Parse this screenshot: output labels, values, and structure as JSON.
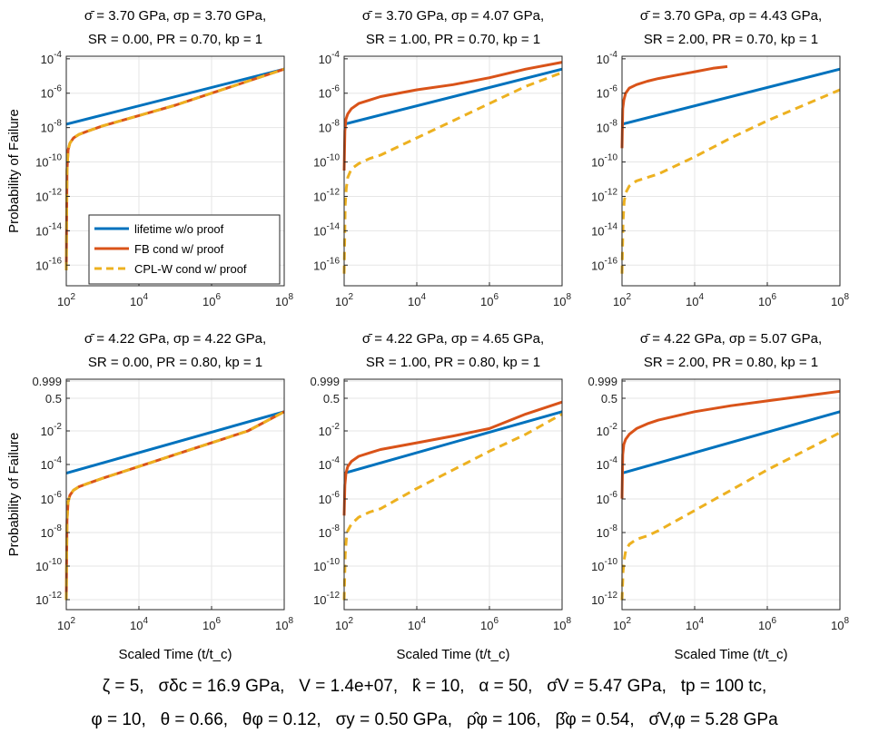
{
  "chart_data": {
    "type": "line",
    "colors": {
      "lifetime": "#0072BD",
      "fb": "#D95319",
      "cpl": "#EDB120",
      "grid": "#e6e6e6",
      "axis": "#262626"
    },
    "legend": {
      "placement": "bottom-left of first panel",
      "entries": [
        {
          "key": "lifetime",
          "label": "lifetime w/o proof"
        },
        {
          "key": "fb",
          "label": "FB cond w/ proof"
        },
        {
          "key": "cpl",
          "label": "CPL-W cond w/ proof"
        }
      ]
    },
    "xlabel": "Scaled Time (t/t_c)",
    "ylabel": "Probability of Failure",
    "xlim": [
      100,
      100000000
    ],
    "x_ticks": [
      "10^2",
      "10^4",
      "10^6",
      "10^8"
    ],
    "y_ticks_top_row": [
      "10^-4",
      "10^-6",
      "10^-8",
      "10^-10",
      "10^-12",
      "10^-14",
      "10^-16"
    ],
    "y_ticks_bottom_row": [
      "0.999",
      "0.5",
      "10^-2",
      "10^-4",
      "10^-6",
      "10^-8",
      "10^-10",
      "10^-12"
    ],
    "panels": [
      {
        "title1": "σ̄ = 3.70 GPa, σp = 3.70 GPa,",
        "title2": "SR = 0.00, PR = 0.70, kp = 1",
        "series": [
          {
            "name": "lifetime w/o proof",
            "x_log10": [
              2,
              8
            ],
            "y_log10": [
              -7.8,
              -4.6
            ]
          },
          {
            "name": "FB cond w/ proof",
            "x_log10": [
              2.0,
              2.02,
              2.05,
              2.1,
              2.2,
              2.35,
              2.6,
              3,
              4,
              5,
              6,
              7,
              8
            ],
            "y_log10": [
              -16.3,
              -10.5,
              -9.3,
              -8.9,
              -8.6,
              -8.4,
              -8.2,
              -7.9,
              -7.3,
              -6.7,
              -6.0,
              -5.3,
              -4.6
            ]
          },
          {
            "name": "CPL-W cond w/ proof",
            "x_log10": [
              2.0,
              2.02,
              2.05,
              2.1,
              2.2,
              2.35,
              2.6,
              3,
              4,
              5,
              6,
              7,
              8
            ],
            "y_log10": [
              -16.3,
              -10.5,
              -9.3,
              -8.9,
              -8.6,
              -8.4,
              -8.2,
              -7.9,
              -7.3,
              -6.7,
              -6.0,
              -5.3,
              -4.6
            ]
          }
        ]
      },
      {
        "title1": "σ̄ = 3.70 GPa, σp = 4.07 GPa,",
        "title2": "SR = 1.00, PR = 0.70, kp = 1",
        "series": [
          {
            "name": "lifetime w/o proof",
            "x_log10": [
              2,
              8
            ],
            "y_log10": [
              -7.8,
              -4.6
            ]
          },
          {
            "name": "FB cond w/ proof",
            "x_log10": [
              2.0,
              2.02,
              2.05,
              2.1,
              2.2,
              2.4,
              2.7,
              3,
              4,
              5,
              6,
              7,
              8
            ],
            "y_log10": [
              -10.5,
              -8.2,
              -7.5,
              -7.2,
              -6.9,
              -6.6,
              -6.4,
              -6.2,
              -5.8,
              -5.5,
              -5.1,
              -4.6,
              -4.2
            ]
          },
          {
            "name": "CPL-W cond w/ proof",
            "x_log10": [
              2.0,
              2.03,
              2.06,
              2.1,
              2.2,
              2.4,
              2.7,
              3,
              4,
              5,
              6,
              7,
              8
            ],
            "y_log10": [
              -16.5,
              -12.5,
              -11.5,
              -10.9,
              -10.4,
              -10.1,
              -9.8,
              -9.6,
              -8.6,
              -7.6,
              -6.6,
              -5.6,
              -4.8
            ]
          }
        ]
      },
      {
        "title1": "σ̄ = 3.70 GPa, σp = 4.43 GPa,",
        "title2": "SR = 2.00, PR = 0.70, kp = 1",
        "series": [
          {
            "name": "lifetime w/o proof",
            "x_log10": [
              2,
              8
            ],
            "y_log10": [
              -7.8,
              -4.6
            ]
          },
          {
            "name": "FB cond w/ proof",
            "x_log10": [
              2.0,
              2.02,
              2.05,
              2.1,
              2.2,
              2.4,
              2.7,
              3,
              3.5,
              4,
              4.5,
              4.9
            ],
            "y_log10": [
              -9.2,
              -6.9,
              -6.4,
              -6.0,
              -5.7,
              -5.5,
              -5.3,
              -5.15,
              -4.95,
              -4.75,
              -4.55,
              -4.45
            ]
          },
          {
            "name": "CPL-W cond w/ proof",
            "x_log10": [
              2.0,
              2.03,
              2.06,
              2.1,
              2.2,
              2.4,
              2.7,
              3,
              4,
              5,
              6,
              7,
              8
            ],
            "y_log10": [
              -16.5,
              -13.4,
              -12.3,
              -11.8,
              -11.4,
              -11.1,
              -10.9,
              -10.7,
              -9.7,
              -8.6,
              -7.6,
              -6.7,
              -5.8
            ]
          }
        ]
      },
      {
        "title1": "σ̄ = 4.22 GPa, σp = 4.22 GPa,",
        "title2": "SR = 0.00, PR = 0.80, kp = 1",
        "series": [
          {
            "name": "lifetime w/o proof",
            "x_log10": [
              2,
              8
            ],
            "y_log10": [
              -4.5,
              -1.2
            ]
          },
          {
            "name": "FB cond w/ proof",
            "x_log10": [
              2.0,
              2.02,
              2.05,
              2.1,
              2.2,
              2.35,
              2.6,
              3,
              4,
              5,
              6,
              7,
              8
            ],
            "y_log10": [
              -12.0,
              -7.3,
              -6.2,
              -5.8,
              -5.5,
              -5.3,
              -5.1,
              -4.8,
              -4.1,
              -3.4,
              -2.7,
              -2.0,
              -1.2
            ]
          },
          {
            "name": "CPL-W cond w/ proof",
            "x_log10": [
              2.0,
              2.02,
              2.05,
              2.1,
              2.2,
              2.35,
              2.6,
              3,
              4,
              5,
              6,
              7,
              8
            ],
            "y_log10": [
              -12.0,
              -7.3,
              -6.2,
              -5.8,
              -5.5,
              -5.3,
              -5.1,
              -4.8,
              -4.1,
              -3.4,
              -2.7,
              -2.0,
              -1.2
            ]
          }
        ]
      },
      {
        "title1": "σ̄ = 4.22 GPa, σp = 4.65 GPa,",
        "title2": "SR = 1.00, PR = 0.80, kp = 1",
        "series": [
          {
            "name": "lifetime w/o proof",
            "x_log10": [
              2,
              8
            ],
            "y_log10": [
              -4.5,
              -1.2
            ]
          },
          {
            "name": "FB cond w/ proof",
            "x_log10": [
              2.0,
              2.02,
              2.05,
              2.1,
              2.2,
              2.4,
              2.7,
              3,
              4,
              5,
              6,
              7,
              8
            ],
            "y_log10": [
              -7.0,
              -5.2,
              -4.5,
              -4.1,
              -3.8,
              -3.5,
              -3.3,
              -3.1,
              -2.7,
              -2.3,
              -1.9,
              -1.3,
              -0.8
            ]
          },
          {
            "name": "CPL-W cond w/ proof",
            "x_log10": [
              2.0,
              2.03,
              2.06,
              2.1,
              2.2,
              2.4,
              2.7,
              3,
              4,
              5,
              6,
              7,
              8
            ],
            "y_log10": [
              -12.0,
              -9.3,
              -8.4,
              -7.9,
              -7.5,
              -7.1,
              -6.8,
              -6.6,
              -5.4,
              -4.3,
              -3.2,
              -2.2,
              -1.3
            ]
          }
        ]
      },
      {
        "title1": "σ̄ = 4.22 GPa, σp = 5.07 GPa,",
        "title2": "SR = 2.00, PR = 0.80, kp = 1",
        "series": [
          {
            "name": "lifetime w/o proof",
            "x_log10": [
              2,
              8
            ],
            "y_log10": [
              -4.5,
              -1.2
            ]
          },
          {
            "name": "FB cond w/ proof",
            "x_log10": [
              2.0,
              2.02,
              2.05,
              2.1,
              2.2,
              2.4,
              2.7,
              3,
              4,
              5,
              6,
              7,
              8
            ],
            "y_log10": [
              -6.0,
              -3.4,
              -2.8,
              -2.5,
              -2.2,
              -1.9,
              -1.7,
              -1.55,
              -1.2,
              -0.95,
              -0.75,
              -0.55,
              -0.35
            ]
          },
          {
            "name": "CPL-W cond w/ proof",
            "x_log10": [
              2.0,
              2.03,
              2.06,
              2.1,
              2.2,
              2.4,
              2.7,
              3,
              4,
              5,
              6,
              7,
              8
            ],
            "y_log10": [
              -12.0,
              -10.3,
              -9.6,
              -9.1,
              -8.7,
              -8.4,
              -8.2,
              -7.9,
              -6.7,
              -5.5,
              -4.3,
              -3.2,
              -2.1
            ]
          }
        ]
      }
    ]
  },
  "footer": {
    "line1": [
      "ζ = 5,",
      "σδc = 16.9 GPa,",
      "V = 1.4e+07,",
      "k̂ = 10,",
      "α = 50,",
      "σ̂V = 5.47 GPa,",
      "tp = 100 tc,"
    ],
    "line2": [
      "φ = 10,",
      "θ = 0.66,",
      "θφ = 0.12,",
      "σy = 0.50 GPa,",
      "ρ̂φ = 106,",
      "β̂φ = 0.54,",
      "σ̂V,φ = 5.28 GPa"
    ]
  }
}
